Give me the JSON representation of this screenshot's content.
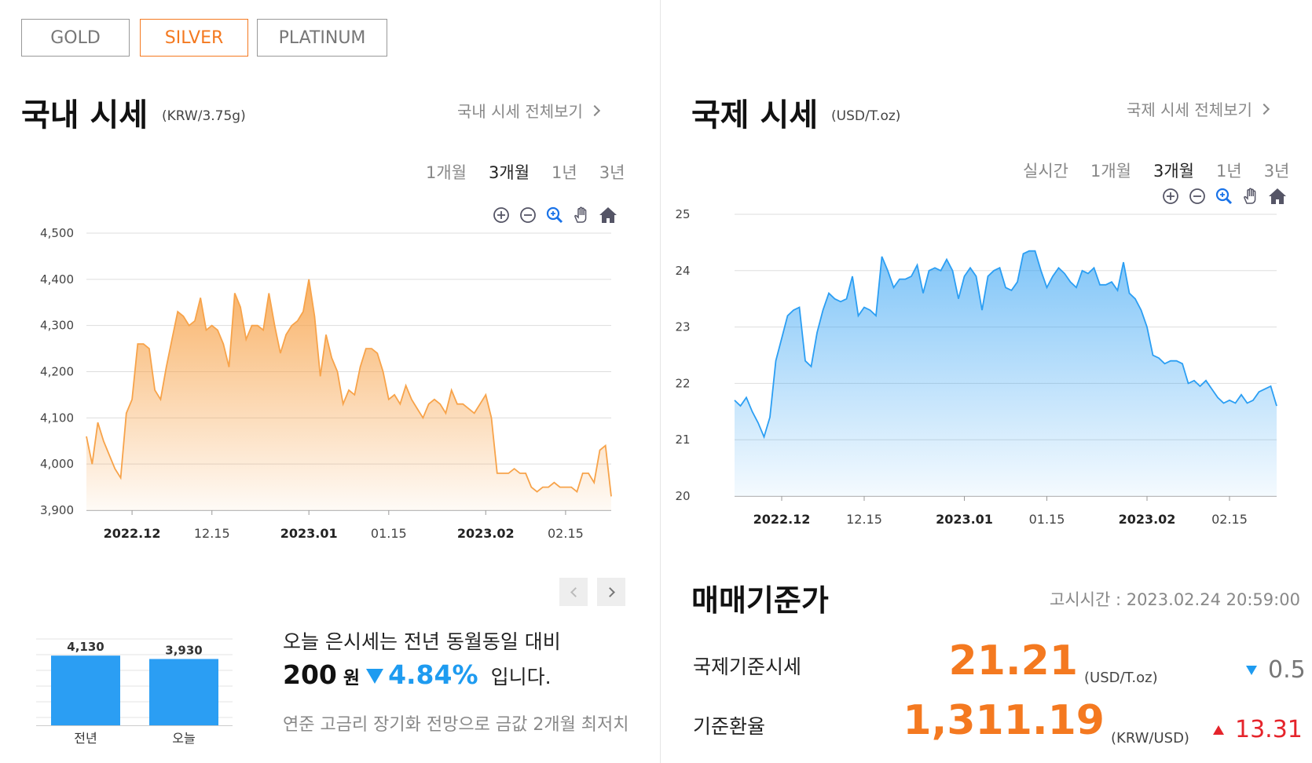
{
  "metal_tabs": [
    {
      "label": "GOLD",
      "active": false
    },
    {
      "label": "SILVER",
      "active": true
    },
    {
      "label": "PLATINUM",
      "active": false
    }
  ],
  "domestic": {
    "title": "국내 시세",
    "unit": "(KRW/3.75g)",
    "view_all": "국내 시세 전체보기",
    "periods": [
      {
        "label": "1개월",
        "active": false
      },
      {
        "label": "3개월",
        "active": true
      },
      {
        "label": "1년",
        "active": false
      },
      {
        "label": "3년",
        "active": false
      }
    ],
    "toolbar_icons": [
      "zoom-in-plus-icon",
      "zoom-out-minus-icon",
      "magnifier-icon",
      "pan-hand-icon",
      "home-icon"
    ]
  },
  "international": {
    "title": "국제 시세",
    "unit": "(USD/T.oz)",
    "view_all": "국제 시세 전체보기",
    "periods": [
      {
        "label": "실시간",
        "active": false
      },
      {
        "label": "1개월",
        "active": false
      },
      {
        "label": "3개월",
        "active": true
      },
      {
        "label": "1년",
        "active": false
      },
      {
        "label": "3년",
        "active": false
      }
    ],
    "toolbar_icons": [
      "zoom-in-plus-icon",
      "zoom-out-minus-icon",
      "magnifier-icon",
      "pan-hand-icon",
      "home-icon"
    ]
  },
  "comparison": {
    "line1": "오늘 은시세는 전년 동월동일 대비",
    "amount": "200",
    "won": "원",
    "percent": "4.84%",
    "tail": "입니다.",
    "news": "연준 고금리 장기화 전망으로 금값 2개월 최저치"
  },
  "reference": {
    "title": "매매기준가",
    "time_label": "고시시간 : 2023.02.24 20:59:00",
    "rows": [
      {
        "label": "국제기준시세",
        "value": "21.21",
        "unit": "(USD/T.oz)",
        "direction": "down",
        "change": "0.5"
      },
      {
        "label": "기준환율",
        "value": "1,311.19",
        "unit": "(KRW/USD)",
        "direction": "up",
        "change": "13.31"
      }
    ]
  },
  "colors": {
    "accent": "#f47920",
    "domestic_line": "#f7a34a",
    "international_line": "#2b9ef3",
    "bar": "#2b9ef3",
    "down": "#1e9bf0",
    "up": "#e5242b"
  },
  "chart_data": [
    {
      "type": "area",
      "title": "",
      "xlabel": "",
      "ylabel": "",
      "ylim": [
        3900,
        4500
      ],
      "yticks": [
        3900,
        4000,
        4100,
        4200,
        4300,
        4400,
        4500
      ],
      "grid": true,
      "xlim": [
        "2022-11-23",
        "2023-02-23"
      ],
      "xticks": [
        {
          "date": "2022-12-01",
          "label": "2022.12",
          "bold": true
        },
        {
          "date": "2022-12-15",
          "label": "12.15",
          "bold": false
        },
        {
          "date": "2023-01-01",
          "label": "2023.01",
          "bold": true
        },
        {
          "date": "2023-01-15",
          "label": "01.15",
          "bold": false
        },
        {
          "date": "2023-02-01",
          "label": "2023.02",
          "bold": true
        },
        {
          "date": "2023-02-15",
          "label": "02.15",
          "bold": false
        }
      ],
      "series": [
        {
          "x": [
            "2022-11-23",
            "2022-11-24",
            "2022-11-25",
            "2022-11-26",
            "2022-11-27",
            "2022-11-28",
            "2022-11-29",
            "2022-11-30",
            "2022-12-01",
            "2022-12-02",
            "2022-12-03",
            "2022-12-04",
            "2022-12-05",
            "2022-12-06",
            "2022-12-07",
            "2022-12-08",
            "2022-12-09",
            "2022-12-10",
            "2022-12-11",
            "2022-12-12",
            "2022-12-13",
            "2022-12-14",
            "2022-12-15",
            "2022-12-16",
            "2022-12-17",
            "2022-12-18",
            "2022-12-19",
            "2022-12-20",
            "2022-12-21",
            "2022-12-22",
            "2022-12-23",
            "2022-12-24",
            "2022-12-25",
            "2022-12-26",
            "2022-12-27",
            "2022-12-28",
            "2022-12-29",
            "2022-12-30",
            "2022-12-31",
            "2023-01-01",
            "2023-01-02",
            "2023-01-03",
            "2023-01-04",
            "2023-01-05",
            "2023-01-06",
            "2023-01-07",
            "2023-01-08",
            "2023-01-09",
            "2023-01-10",
            "2023-01-11",
            "2023-01-12",
            "2023-01-13",
            "2023-01-14",
            "2023-01-15",
            "2023-01-16",
            "2023-01-17",
            "2023-01-18",
            "2023-01-19",
            "2023-01-20",
            "2023-01-21",
            "2023-01-22",
            "2023-01-23",
            "2023-01-24",
            "2023-01-25",
            "2023-01-26",
            "2023-01-27",
            "2023-01-28",
            "2023-01-29",
            "2023-01-30",
            "2023-01-31",
            "2023-02-01",
            "2023-02-02",
            "2023-02-03",
            "2023-02-04",
            "2023-02-05",
            "2023-02-06",
            "2023-02-07",
            "2023-02-08",
            "2023-02-09",
            "2023-02-10",
            "2023-02-11",
            "2023-02-12",
            "2023-02-13",
            "2023-02-14",
            "2023-02-15",
            "2023-02-16",
            "2023-02-17",
            "2023-02-18",
            "2023-02-19",
            "2023-02-20",
            "2023-02-21",
            "2023-02-22",
            "2023-02-23"
          ],
          "values": [
            4060,
            4000,
            4090,
            4050,
            4020,
            3990,
            3970,
            4110,
            4140,
            4260,
            4260,
            4250,
            4160,
            4140,
            4210,
            4270,
            4330,
            4320,
            4300,
            4310,
            4360,
            4290,
            4300,
            4290,
            4260,
            4210,
            4370,
            4340,
            4270,
            4300,
            4300,
            4290,
            4370,
            4300,
            4240,
            4280,
            4300,
            4310,
            4330,
            4400,
            4320,
            4190,
            4280,
            4230,
            4200,
            4130,
            4160,
            4150,
            4210,
            4250,
            4250,
            4240,
            4200,
            4140,
            4150,
            4130,
            4170,
            4140,
            4120,
            4100,
            4130,
            4140,
            4130,
            4110,
            4160,
            4130,
            4130,
            4120,
            4110,
            4130,
            4150,
            4100,
            3980,
            3980,
            3980,
            3990,
            3980,
            3980,
            3950,
            3940,
            3950,
            3950,
            3960,
            3950,
            3950,
            3950,
            3940,
            3980,
            3980,
            3960,
            4030,
            4040,
            3930
          ]
        }
      ]
    },
    {
      "type": "area",
      "title": "",
      "xlabel": "",
      "ylabel": "",
      "ylim": [
        20,
        25
      ],
      "yticks": [
        20,
        21,
        22,
        23,
        24,
        25
      ],
      "grid": true,
      "xlim": [
        "2022-11-23",
        "2023-02-23"
      ],
      "xticks": [
        {
          "date": "2022-12-01",
          "label": "2022.12",
          "bold": true
        },
        {
          "date": "2022-12-15",
          "label": "12.15",
          "bold": false
        },
        {
          "date": "2023-01-01",
          "label": "2023.01",
          "bold": true
        },
        {
          "date": "2023-01-15",
          "label": "01.15",
          "bold": false
        },
        {
          "date": "2023-02-01",
          "label": "2023.02",
          "bold": true
        },
        {
          "date": "2023-02-15",
          "label": "02.15",
          "bold": false
        }
      ],
      "series": [
        {
          "x": [
            "2022-11-23",
            "2022-11-24",
            "2022-11-25",
            "2022-11-26",
            "2022-11-27",
            "2022-11-28",
            "2022-11-29",
            "2022-11-30",
            "2022-12-01",
            "2022-12-02",
            "2022-12-03",
            "2022-12-04",
            "2022-12-05",
            "2022-12-06",
            "2022-12-07",
            "2022-12-08",
            "2022-12-09",
            "2022-12-10",
            "2022-12-11",
            "2022-12-12",
            "2022-12-13",
            "2022-12-14",
            "2022-12-15",
            "2022-12-16",
            "2022-12-17",
            "2022-12-18",
            "2022-12-19",
            "2022-12-20",
            "2022-12-21",
            "2022-12-22",
            "2022-12-23",
            "2022-12-24",
            "2022-12-25",
            "2022-12-26",
            "2022-12-27",
            "2022-12-28",
            "2022-12-29",
            "2022-12-30",
            "2022-12-31",
            "2023-01-01",
            "2023-01-02",
            "2023-01-03",
            "2023-01-04",
            "2023-01-05",
            "2023-01-06",
            "2023-01-07",
            "2023-01-08",
            "2023-01-09",
            "2023-01-10",
            "2023-01-11",
            "2023-01-12",
            "2023-01-13",
            "2023-01-14",
            "2023-01-15",
            "2023-01-16",
            "2023-01-17",
            "2023-01-18",
            "2023-01-19",
            "2023-01-20",
            "2023-01-21",
            "2023-01-22",
            "2023-01-23",
            "2023-01-24",
            "2023-01-25",
            "2023-01-26",
            "2023-01-27",
            "2023-01-28",
            "2023-01-29",
            "2023-01-30",
            "2023-01-31",
            "2023-02-01",
            "2023-02-02",
            "2023-02-03",
            "2023-02-04",
            "2023-02-05",
            "2023-02-06",
            "2023-02-07",
            "2023-02-08",
            "2023-02-09",
            "2023-02-10",
            "2023-02-11",
            "2023-02-12",
            "2023-02-13",
            "2023-02-14",
            "2023-02-15",
            "2023-02-16",
            "2023-02-17",
            "2023-02-18",
            "2023-02-19",
            "2023-02-20",
            "2023-02-21",
            "2023-02-22",
            "2023-02-23"
          ],
          "values": [
            21.7,
            21.6,
            21.75,
            21.5,
            21.3,
            21.05,
            21.4,
            22.4,
            22.8,
            23.2,
            23.3,
            23.35,
            22.4,
            22.3,
            22.9,
            23.3,
            23.6,
            23.5,
            23.45,
            23.5,
            23.9,
            23.2,
            23.35,
            23.3,
            23.2,
            24.25,
            24.0,
            23.7,
            23.85,
            23.85,
            23.9,
            24.1,
            23.6,
            24.0,
            24.05,
            24.0,
            24.2,
            24.0,
            23.5,
            23.9,
            24.05,
            23.9,
            23.3,
            23.9,
            24.0,
            24.05,
            23.7,
            23.65,
            23.8,
            24.3,
            24.35,
            24.35,
            24.0,
            23.7,
            23.9,
            24.05,
            23.95,
            23.8,
            23.7,
            24.0,
            23.95,
            24.05,
            23.75,
            23.75,
            23.8,
            23.65,
            24.15,
            23.6,
            23.5,
            23.3,
            23.0,
            22.5,
            22.45,
            22.35,
            22.4,
            22.4,
            22.35,
            22.0,
            22.05,
            21.95,
            22.05,
            21.9,
            21.75,
            21.65,
            21.7,
            21.65,
            21.8,
            21.65,
            21.7,
            21.85,
            21.9,
            21.95,
            21.6
          ]
        }
      ]
    },
    {
      "type": "bar",
      "title": "",
      "xlabel": "",
      "ylabel": "",
      "categories": [
        "전년",
        "오늘"
      ],
      "values": [
        4130,
        3930
      ],
      "data_labels": [
        "4,130",
        "3,930"
      ],
      "grid": true
    }
  ]
}
